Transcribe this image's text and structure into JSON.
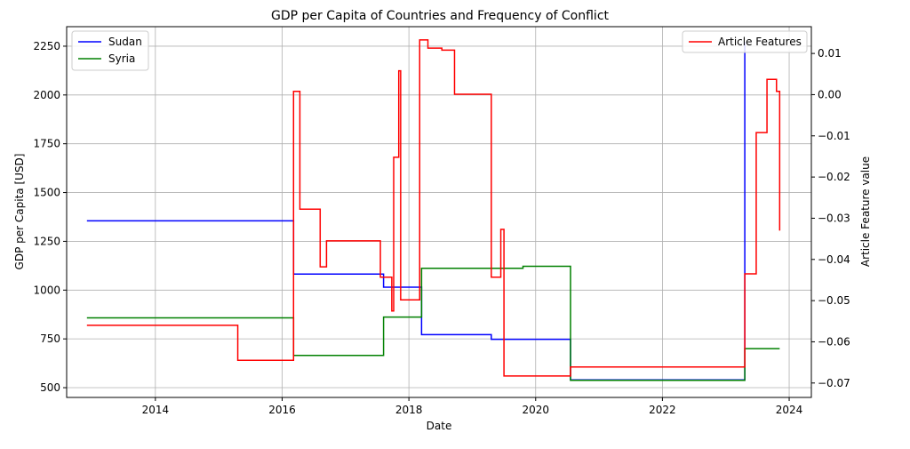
{
  "chart_data": {
    "type": "line",
    "title": "GDP per Capita of Countries and Frequency of Conflict",
    "xlabel": "Date",
    "ylabel": "GDP per Capita [USD]",
    "y2label": "Article Feature value",
    "xlim": [
      2012.6,
      2024.35
    ],
    "ylim": [
      450,
      2350
    ],
    "y2lim": [
      -0.0735,
      0.0165
    ],
    "xticks": [
      2014,
      2016,
      2018,
      2020,
      2022,
      2024
    ],
    "yticks": [
      500,
      750,
      1000,
      1250,
      1500,
      1750,
      2000,
      2250
    ],
    "y2ticks": [
      -0.07,
      -0.06,
      -0.05,
      -0.04,
      -0.03,
      -0.02,
      -0.01,
      0.0,
      0.01
    ],
    "y2tick_labels": [
      "−0.07",
      "−0.06",
      "−0.05",
      "−0.04",
      "−0.03",
      "−0.02",
      "−0.01",
      "0.00",
      "0.01"
    ],
    "grid": true,
    "legend_left": {
      "placement": "top-left",
      "entries": [
        "Sudan",
        "Syria"
      ]
    },
    "legend_right": {
      "placement": "top-right",
      "entries": [
        "Article Features"
      ]
    },
    "series": [
      {
        "name": "Sudan",
        "axis": "left",
        "color": "#0000ff",
        "step": true,
        "points": [
          [
            2012.92,
            1355
          ],
          [
            2016.18,
            1355
          ],
          [
            2016.18,
            1082
          ],
          [
            2017.6,
            1082
          ],
          [
            2017.6,
            1015
          ],
          [
            2018.2,
            1015
          ],
          [
            2018.2,
            772
          ],
          [
            2019.3,
            772
          ],
          [
            2019.3,
            748
          ],
          [
            2020.55,
            748
          ],
          [
            2020.55,
            540
          ],
          [
            2023.3,
            540
          ],
          [
            2023.3,
            2270
          ]
        ]
      },
      {
        "name": "Syria",
        "axis": "left",
        "color": "#008000",
        "step": true,
        "points": [
          [
            2012.92,
            858
          ],
          [
            2016.18,
            858
          ],
          [
            2016.18,
            665
          ],
          [
            2017.6,
            665
          ],
          [
            2017.6,
            862
          ],
          [
            2018.2,
            862
          ],
          [
            2018.2,
            1112
          ],
          [
            2019.8,
            1112
          ],
          [
            2019.8,
            1122
          ],
          [
            2020.55,
            1122
          ],
          [
            2020.55,
            538
          ],
          [
            2023.3,
            538
          ],
          [
            2023.3,
            700
          ],
          [
            2023.85,
            700
          ]
        ]
      },
      {
        "name": "Article Features",
        "axis": "right",
        "color": "#ff0000",
        "step": true,
        "points": [
          [
            2012.92,
            -0.056
          ],
          [
            2015.3,
            -0.056
          ],
          [
            2015.3,
            -0.0645
          ],
          [
            2016.18,
            -0.0645
          ],
          [
            2016.18,
            0.0008
          ],
          [
            2016.28,
            0.0008
          ],
          [
            2016.28,
            -0.0278
          ],
          [
            2016.6,
            -0.0278
          ],
          [
            2016.6,
            -0.0418
          ],
          [
            2016.7,
            -0.0418
          ],
          [
            2016.7,
            -0.0355
          ],
          [
            2017.55,
            -0.0355
          ],
          [
            2017.55,
            -0.0443
          ],
          [
            2017.73,
            -0.0443
          ],
          [
            2017.73,
            -0.0525
          ],
          [
            2017.76,
            -0.0525
          ],
          [
            2017.76,
            -0.0152
          ],
          [
            2017.84,
            -0.0152
          ],
          [
            2017.84,
            0.0058
          ],
          [
            2017.87,
            0.0058
          ],
          [
            2017.87,
            -0.0498
          ],
          [
            2018.17,
            -0.0498
          ],
          [
            2018.17,
            0.0133
          ],
          [
            2018.3,
            0.0133
          ],
          [
            2018.3,
            0.0113
          ],
          [
            2018.52,
            0.0113
          ],
          [
            2018.52,
            0.0108
          ],
          [
            2018.72,
            0.0108
          ],
          [
            2018.72,
            0.0001
          ],
          [
            2019.3,
            0.0001
          ],
          [
            2019.3,
            -0.0443
          ],
          [
            2019.45,
            -0.0443
          ],
          [
            2019.45,
            -0.0327
          ],
          [
            2019.5,
            -0.0327
          ],
          [
            2019.5,
            -0.0683
          ],
          [
            2020.55,
            -0.0683
          ],
          [
            2020.55,
            -0.0661
          ],
          [
            2023.3,
            -0.0661
          ],
          [
            2023.3,
            -0.0435
          ],
          [
            2023.48,
            -0.0435
          ],
          [
            2023.48,
            -0.0092
          ],
          [
            2023.65,
            -0.0092
          ],
          [
            2023.65,
            0.0037
          ],
          [
            2023.8,
            0.0037
          ],
          [
            2023.8,
            0.0008
          ],
          [
            2023.85,
            0.0008
          ],
          [
            2023.85,
            -0.033
          ]
        ]
      }
    ]
  }
}
